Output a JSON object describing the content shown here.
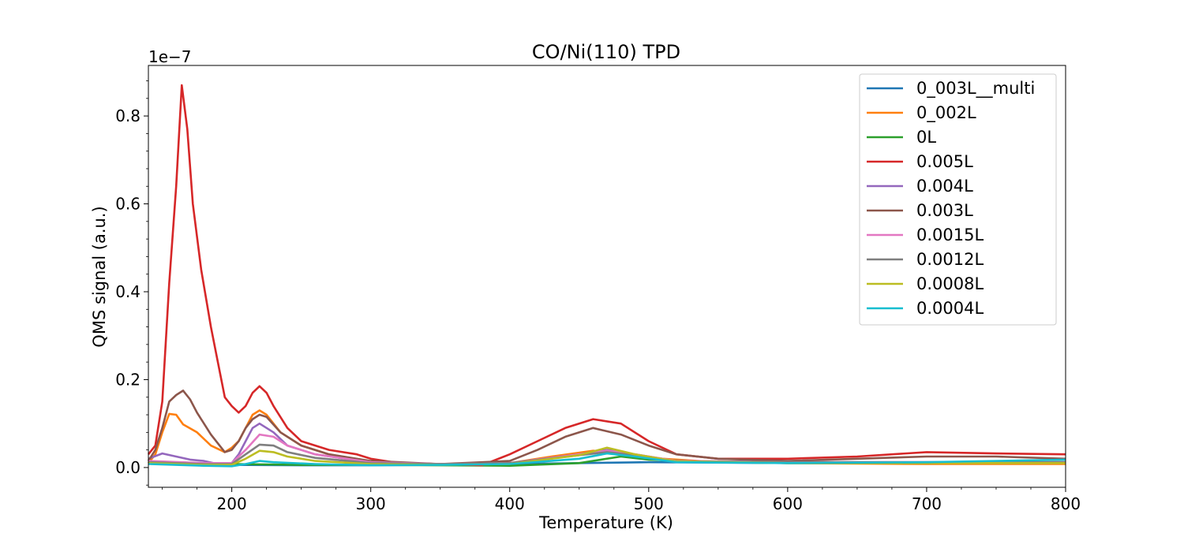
{
  "chart_data": {
    "type": "line",
    "title": "CO/Ni(110) TPD",
    "xlabel": "Temperature (K)",
    "ylabel": "QMS signal (a.u.)",
    "offset_text": "1e−7",
    "xlim": [
      140,
      800
    ],
    "ylim": [
      -0.045,
      0.915
    ],
    "xticks": [
      200,
      300,
      400,
      500,
      600,
      700,
      800
    ],
    "yticks": [
      0.0,
      0.2,
      0.4,
      0.6,
      0.8
    ],
    "ytick_labels": [
      "0.0",
      "0.2",
      "0.4",
      "0.6",
      "0.8"
    ],
    "grid": false,
    "legend_position": "top-right",
    "series": [
      {
        "name": "0_003L__multi",
        "color": "#1f77b4",
        "points": [
          [
            140,
            0.012
          ],
          [
            160,
            0.01
          ],
          [
            180,
            0.008
          ],
          [
            200,
            0.006
          ],
          [
            250,
            0.005
          ],
          [
            300,
            0.005
          ],
          [
            350,
            0.006
          ],
          [
            400,
            0.008
          ],
          [
            450,
            0.01
          ],
          [
            500,
            0.012
          ],
          [
            600,
            0.01
          ],
          [
            700,
            0.01
          ],
          [
            800,
            0.012
          ]
        ]
      },
      {
        "name": "0_002L",
        "color": "#ff7f0e",
        "points": [
          [
            140,
            0.01
          ],
          [
            145,
            0.03
          ],
          [
            150,
            0.08
          ],
          [
            155,
            0.122
          ],
          [
            160,
            0.12
          ],
          [
            165,
            0.098
          ],
          [
            175,
            0.08
          ],
          [
            185,
            0.05
          ],
          [
            195,
            0.035
          ],
          [
            200,
            0.045
          ],
          [
            205,
            0.06
          ],
          [
            210,
            0.09
          ],
          [
            215,
            0.12
          ],
          [
            220,
            0.13
          ],
          [
            225,
            0.12
          ],
          [
            235,
            0.08
          ],
          [
            250,
            0.05
          ],
          [
            270,
            0.03
          ],
          [
            300,
            0.012
          ],
          [
            350,
            0.008
          ],
          [
            400,
            0.01
          ],
          [
            430,
            0.025
          ],
          [
            460,
            0.038
          ],
          [
            480,
            0.035
          ],
          [
            500,
            0.022
          ],
          [
            550,
            0.012
          ],
          [
            600,
            0.01
          ],
          [
            700,
            0.008
          ],
          [
            800,
            0.008
          ]
        ]
      },
      {
        "name": "0L",
        "color": "#2ca02c",
        "points": [
          [
            140,
            0.01
          ],
          [
            200,
            0.008
          ],
          [
            250,
            0.006
          ],
          [
            300,
            0.006
          ],
          [
            350,
            0.005
          ],
          [
            400,
            0.004
          ],
          [
            450,
            0.01
          ],
          [
            480,
            0.025
          ],
          [
            500,
            0.018
          ],
          [
            550,
            0.012
          ],
          [
            600,
            0.01
          ],
          [
            700,
            0.01
          ],
          [
            800,
            0.012
          ]
        ]
      },
      {
        "name": "0.005L",
        "color": "#d62728",
        "points": [
          [
            140,
            0.03
          ],
          [
            145,
            0.05
          ],
          [
            150,
            0.15
          ],
          [
            155,
            0.42
          ],
          [
            160,
            0.64
          ],
          [
            164,
            0.87
          ],
          [
            168,
            0.77
          ],
          [
            172,
            0.6
          ],
          [
            178,
            0.45
          ],
          [
            185,
            0.32
          ],
          [
            190,
            0.24
          ],
          [
            195,
            0.16
          ],
          [
            200,
            0.14
          ],
          [
            205,
            0.125
          ],
          [
            210,
            0.14
          ],
          [
            215,
            0.17
          ],
          [
            220,
            0.185
          ],
          [
            225,
            0.17
          ],
          [
            230,
            0.14
          ],
          [
            240,
            0.09
          ],
          [
            250,
            0.06
          ],
          [
            270,
            0.04
          ],
          [
            290,
            0.03
          ],
          [
            300,
            0.02
          ],
          [
            320,
            0.01
          ],
          [
            350,
            0.008
          ],
          [
            380,
            0.005
          ],
          [
            400,
            0.03
          ],
          [
            420,
            0.06
          ],
          [
            440,
            0.09
          ],
          [
            460,
            0.11
          ],
          [
            480,
            0.1
          ],
          [
            500,
            0.06
          ],
          [
            520,
            0.03
          ],
          [
            550,
            0.02
          ],
          [
            600,
            0.02
          ],
          [
            650,
            0.025
          ],
          [
            700,
            0.035
          ],
          [
            750,
            0.032
          ],
          [
            800,
            0.03
          ]
        ]
      },
      {
        "name": "0.004L",
        "color": "#9467bd",
        "points": [
          [
            140,
            0.02
          ],
          [
            150,
            0.032
          ],
          [
            160,
            0.025
          ],
          [
            170,
            0.018
          ],
          [
            180,
            0.015
          ],
          [
            190,
            0.008
          ],
          [
            200,
            0.01
          ],
          [
            205,
            0.03
          ],
          [
            210,
            0.06
          ],
          [
            215,
            0.09
          ],
          [
            220,
            0.1
          ],
          [
            230,
            0.08
          ],
          [
            240,
            0.05
          ],
          [
            260,
            0.03
          ],
          [
            300,
            0.012
          ],
          [
            350,
            0.008
          ],
          [
            400,
            0.01
          ],
          [
            450,
            0.03
          ],
          [
            470,
            0.04
          ],
          [
            490,
            0.03
          ],
          [
            520,
            0.015
          ],
          [
            600,
            0.012
          ],
          [
            700,
            0.012
          ],
          [
            800,
            0.012
          ]
        ]
      },
      {
        "name": "0.003L",
        "color": "#8c564b",
        "points": [
          [
            140,
            0.015
          ],
          [
            145,
            0.04
          ],
          [
            150,
            0.09
          ],
          [
            155,
            0.15
          ],
          [
            160,
            0.165
          ],
          [
            165,
            0.175
          ],
          [
            170,
            0.155
          ],
          [
            175,
            0.125
          ],
          [
            185,
            0.075
          ],
          [
            195,
            0.035
          ],
          [
            200,
            0.04
          ],
          [
            205,
            0.06
          ],
          [
            210,
            0.09
          ],
          [
            215,
            0.11
          ],
          [
            220,
            0.12
          ],
          [
            225,
            0.115
          ],
          [
            235,
            0.08
          ],
          [
            250,
            0.05
          ],
          [
            270,
            0.03
          ],
          [
            300,
            0.015
          ],
          [
            350,
            0.008
          ],
          [
            400,
            0.015
          ],
          [
            420,
            0.04
          ],
          [
            440,
            0.07
          ],
          [
            460,
            0.09
          ],
          [
            480,
            0.075
          ],
          [
            500,
            0.05
          ],
          [
            520,
            0.03
          ],
          [
            550,
            0.02
          ],
          [
            600,
            0.015
          ],
          [
            700,
            0.025
          ],
          [
            750,
            0.025
          ],
          [
            800,
            0.02
          ]
        ]
      },
      {
        "name": "0.0015L",
        "color": "#e377c2",
        "points": [
          [
            140,
            0.015
          ],
          [
            180,
            0.01
          ],
          [
            200,
            0.01
          ],
          [
            210,
            0.04
          ],
          [
            220,
            0.075
          ],
          [
            230,
            0.07
          ],
          [
            240,
            0.05
          ],
          [
            260,
            0.03
          ],
          [
            300,
            0.012
          ],
          [
            350,
            0.008
          ],
          [
            400,
            0.01
          ],
          [
            450,
            0.03
          ],
          [
            470,
            0.038
          ],
          [
            490,
            0.03
          ],
          [
            520,
            0.015
          ],
          [
            600,
            0.012
          ],
          [
            700,
            0.012
          ],
          [
            800,
            0.012
          ]
        ]
      },
      {
        "name": "0.0012L",
        "color": "#7f7f7f",
        "points": [
          [
            140,
            0.012
          ],
          [
            180,
            0.008
          ],
          [
            200,
            0.008
          ],
          [
            210,
            0.03
          ],
          [
            220,
            0.052
          ],
          [
            230,
            0.05
          ],
          [
            240,
            0.035
          ],
          [
            260,
            0.022
          ],
          [
            300,
            0.01
          ],
          [
            350,
            0.008
          ],
          [
            400,
            0.01
          ],
          [
            450,
            0.028
          ],
          [
            470,
            0.035
          ],
          [
            490,
            0.028
          ],
          [
            520,
            0.014
          ],
          [
            600,
            0.012
          ],
          [
            700,
            0.012
          ],
          [
            800,
            0.012
          ]
        ]
      },
      {
        "name": "0.0008L",
        "color": "#bcbd22",
        "points": [
          [
            140,
            0.01
          ],
          [
            180,
            0.006
          ],
          [
            200,
            0.006
          ],
          [
            210,
            0.02
          ],
          [
            220,
            0.038
          ],
          [
            230,
            0.035
          ],
          [
            240,
            0.025
          ],
          [
            260,
            0.015
          ],
          [
            300,
            0.008
          ],
          [
            350,
            0.006
          ],
          [
            400,
            0.008
          ],
          [
            450,
            0.028
          ],
          [
            470,
            0.045
          ],
          [
            490,
            0.03
          ],
          [
            520,
            0.014
          ],
          [
            600,
            0.01
          ],
          [
            700,
            0.01
          ],
          [
            800,
            0.01
          ]
        ]
      },
      {
        "name": "0.0004L",
        "color": "#17becf",
        "points": [
          [
            140,
            0.008
          ],
          [
            160,
            0.006
          ],
          [
            180,
            0.004
          ],
          [
            200,
            0.003
          ],
          [
            210,
            0.008
          ],
          [
            220,
            0.015
          ],
          [
            230,
            0.012
          ],
          [
            260,
            0.008
          ],
          [
            300,
            0.005
          ],
          [
            350,
            0.006
          ],
          [
            400,
            0.008
          ],
          [
            450,
            0.02
          ],
          [
            470,
            0.032
          ],
          [
            490,
            0.025
          ],
          [
            520,
            0.012
          ],
          [
            600,
            0.01
          ],
          [
            700,
            0.012
          ],
          [
            800,
            0.018
          ]
        ]
      }
    ]
  }
}
